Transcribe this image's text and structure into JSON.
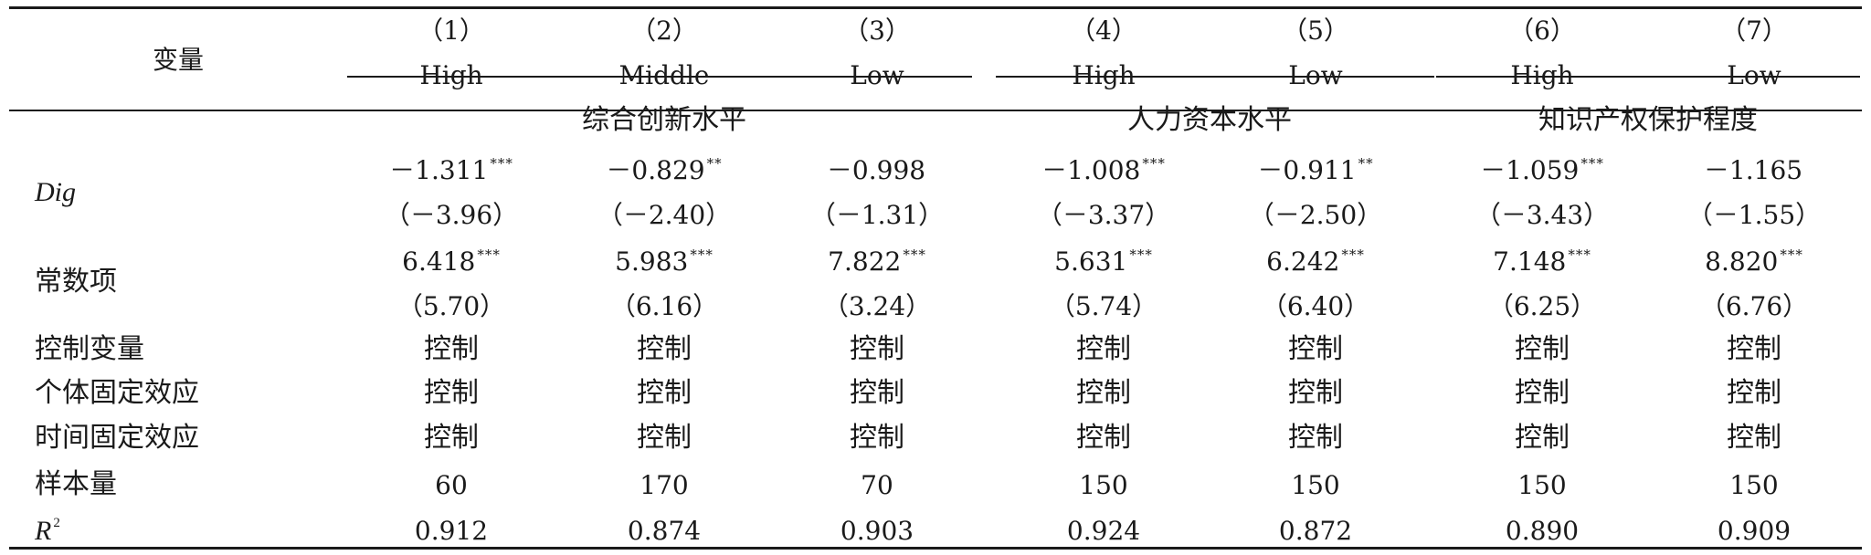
{
  "table": {
    "var_header": "变量",
    "col_numbers": [
      "（1）",
      "（2）",
      "（3）",
      "（4）",
      "（5）",
      "（6）",
      "（7）"
    ],
    "col_levels": [
      "High",
      "Middle",
      "Low",
      "High",
      "Low",
      "High",
      "Low"
    ],
    "groups": [
      "综合创新水平",
      "人力资本水平",
      "知识产权保护程度"
    ],
    "dig": {
      "label": "Dig",
      "coefs": [
        "－1.311",
        "－0.829",
        "－0.998",
        "－1.008",
        "－0.911",
        "－1.059",
        "－1.165"
      ],
      "stars": [
        "***",
        "**",
        "",
        "***",
        "**",
        "***",
        ""
      ],
      "tstats": [
        "（－3.96）",
        "（－2.40）",
        "（－1.31）",
        "（－3.37）",
        "（－2.50）",
        "（－3.43）",
        "（－1.55）"
      ]
    },
    "const": {
      "label": "常数项",
      "coefs": [
        "6.418",
        "5.983",
        "7.822",
        "5.631",
        "6.242",
        "7.148",
        "8.820"
      ],
      "stars": [
        "***",
        "***",
        "***",
        "***",
        "***",
        "***",
        "***"
      ],
      "tstats": [
        "（5.70）",
        "（6.16）",
        "（3.24）",
        "（5.74）",
        "（6.40）",
        "（6.25）",
        "（6.76）"
      ]
    },
    "controls": [
      {
        "label": "控制变量",
        "values": [
          "控制",
          "控制",
          "控制",
          "控制",
          "控制",
          "控制",
          "控制"
        ]
      },
      {
        "label": "个体固定效应",
        "values": [
          "控制",
          "控制",
          "控制",
          "控制",
          "控制",
          "控制",
          "控制"
        ]
      },
      {
        "label": "时间固定效应",
        "values": [
          "控制",
          "控制",
          "控制",
          "控制",
          "控制",
          "控制",
          "控制"
        ]
      }
    ],
    "n": {
      "label": "样本量",
      "values": [
        "60",
        "170",
        "70",
        "150",
        "150",
        "150",
        "150"
      ]
    },
    "r2": {
      "label": "R",
      "sup": "2",
      "values": [
        "0.912",
        "0.874",
        "0.903",
        "0.924",
        "0.872",
        "0.890",
        "0.909"
      ]
    }
  }
}
